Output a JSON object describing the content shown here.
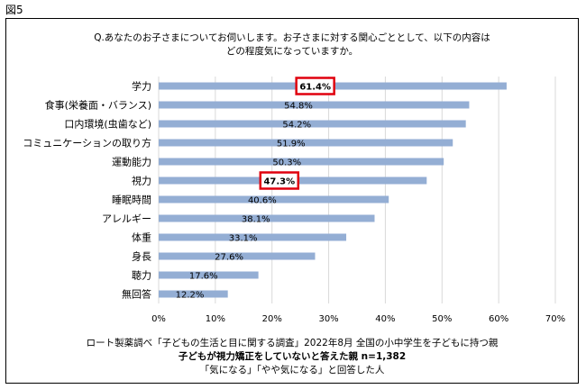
{
  "figure_label": "図5",
  "chart_data": {
    "type": "bar",
    "orientation": "horizontal",
    "title_lines": [
      "Q.あなたのお子さまについてお伺いします。お子さまに対する関心ごととして、以下の内容は",
      "どの程度気になっていますか。"
    ],
    "categories": [
      "学力",
      "食事(栄養面・バランス)",
      "口内環境(虫歯など)",
      "コミュニケーションの取り方",
      "運動能力",
      "視力",
      "睡眠時間",
      "アレルギー",
      "体重",
      "身長",
      "聴力",
      "無回答"
    ],
    "values": [
      61.4,
      54.8,
      54.2,
      51.9,
      50.3,
      47.3,
      40.6,
      38.1,
      33.1,
      27.6,
      17.6,
      12.2
    ],
    "value_labels": [
      "61.4%",
      "54.8%",
      "54.2%",
      "51.9%",
      "50.3%",
      "47.3%",
      "40.6%",
      "38.1%",
      "33.1%",
      "27.6%",
      "17.6%",
      "12.2%"
    ],
    "highlighted": [
      "学力",
      "視力"
    ],
    "xlim": [
      0,
      70
    ],
    "xticks": [
      0,
      10,
      20,
      30,
      40,
      50,
      60,
      70
    ],
    "xtick_labels": [
      "0%",
      "10%",
      "20%",
      "30%",
      "40%",
      "50%",
      "60%",
      "70%"
    ],
    "grid": "vertical",
    "bar_color": "#94AED4",
    "highlight_color": "#E0000E",
    "footnote_lines": [
      "ロート製薬調べ「子どもの生活と目に関する調査」2022年8月 全国の小中学生を子どもに持つ親",
      "子どもが視力矯正をしていないと答えた親 n=1,382",
      "「気になる」「やや気になる」と回答した人"
    ]
  }
}
